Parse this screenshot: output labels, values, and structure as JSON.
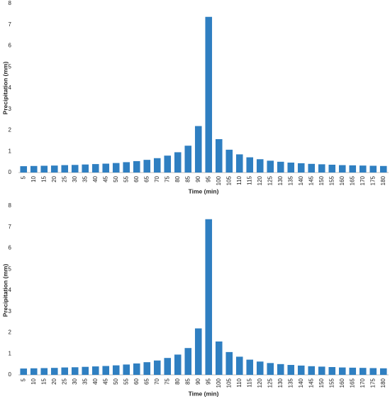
{
  "chart_data": [
    {
      "type": "bar",
      "x_label": "Time (min)",
      "y_label": "Precipitation (mm)",
      "categories": [
        "5",
        "10",
        "15",
        "20",
        "25",
        "30",
        "35",
        "40",
        "45",
        "50",
        "55",
        "60",
        "65",
        "70",
        "75",
        "80",
        "85",
        "90",
        "95",
        "100",
        "105",
        "110",
        "115",
        "120",
        "125",
        "130",
        "135",
        "140",
        "145",
        "150",
        "155",
        "160",
        "165",
        "170",
        "175",
        "180"
      ],
      "values": [
        0.3,
        0.31,
        0.32,
        0.33,
        0.35,
        0.36,
        0.38,
        0.4,
        0.42,
        0.45,
        0.49,
        0.54,
        0.6,
        0.68,
        0.8,
        0.96,
        1.27,
        2.2,
        7.37,
        1.58,
        1.08,
        0.86,
        0.72,
        0.63,
        0.56,
        0.51,
        0.47,
        0.44,
        0.41,
        0.39,
        0.37,
        0.35,
        0.34,
        0.33,
        0.32,
        0.31
      ],
      "color": "#2f7fc1",
      "ylim": [
        0,
        8
      ],
      "yticks": [
        0,
        1,
        2,
        3,
        4,
        5,
        6,
        7,
        8
      ],
      "grid": false
    },
    {
      "type": "bar",
      "x_label": "Time (min)",
      "y_label": "Precipitation (mm)",
      "categories": [
        "5",
        "10",
        "15",
        "20",
        "25",
        "30",
        "35",
        "40",
        "45",
        "50",
        "55",
        "60",
        "65",
        "70",
        "75",
        "80",
        "85",
        "90",
        "95",
        "100",
        "105",
        "110",
        "115",
        "120",
        "125",
        "130",
        "135",
        "140",
        "145",
        "150",
        "155",
        "160",
        "165",
        "170",
        "175",
        "180"
      ],
      "values": [
        0.3,
        0.31,
        0.32,
        0.33,
        0.35,
        0.36,
        0.38,
        0.4,
        0.42,
        0.45,
        0.49,
        0.54,
        0.6,
        0.68,
        0.8,
        0.96,
        1.27,
        2.2,
        7.37,
        1.58,
        1.08,
        0.86,
        0.72,
        0.63,
        0.56,
        0.51,
        0.47,
        0.44,
        0.41,
        0.39,
        0.37,
        0.35,
        0.34,
        0.33,
        0.32,
        0.31
      ],
      "color": "#2f7fc1",
      "ylim": [
        0,
        8
      ],
      "yticks": [
        0,
        1,
        2,
        3,
        4,
        5,
        6,
        7,
        8
      ],
      "grid": false
    }
  ]
}
